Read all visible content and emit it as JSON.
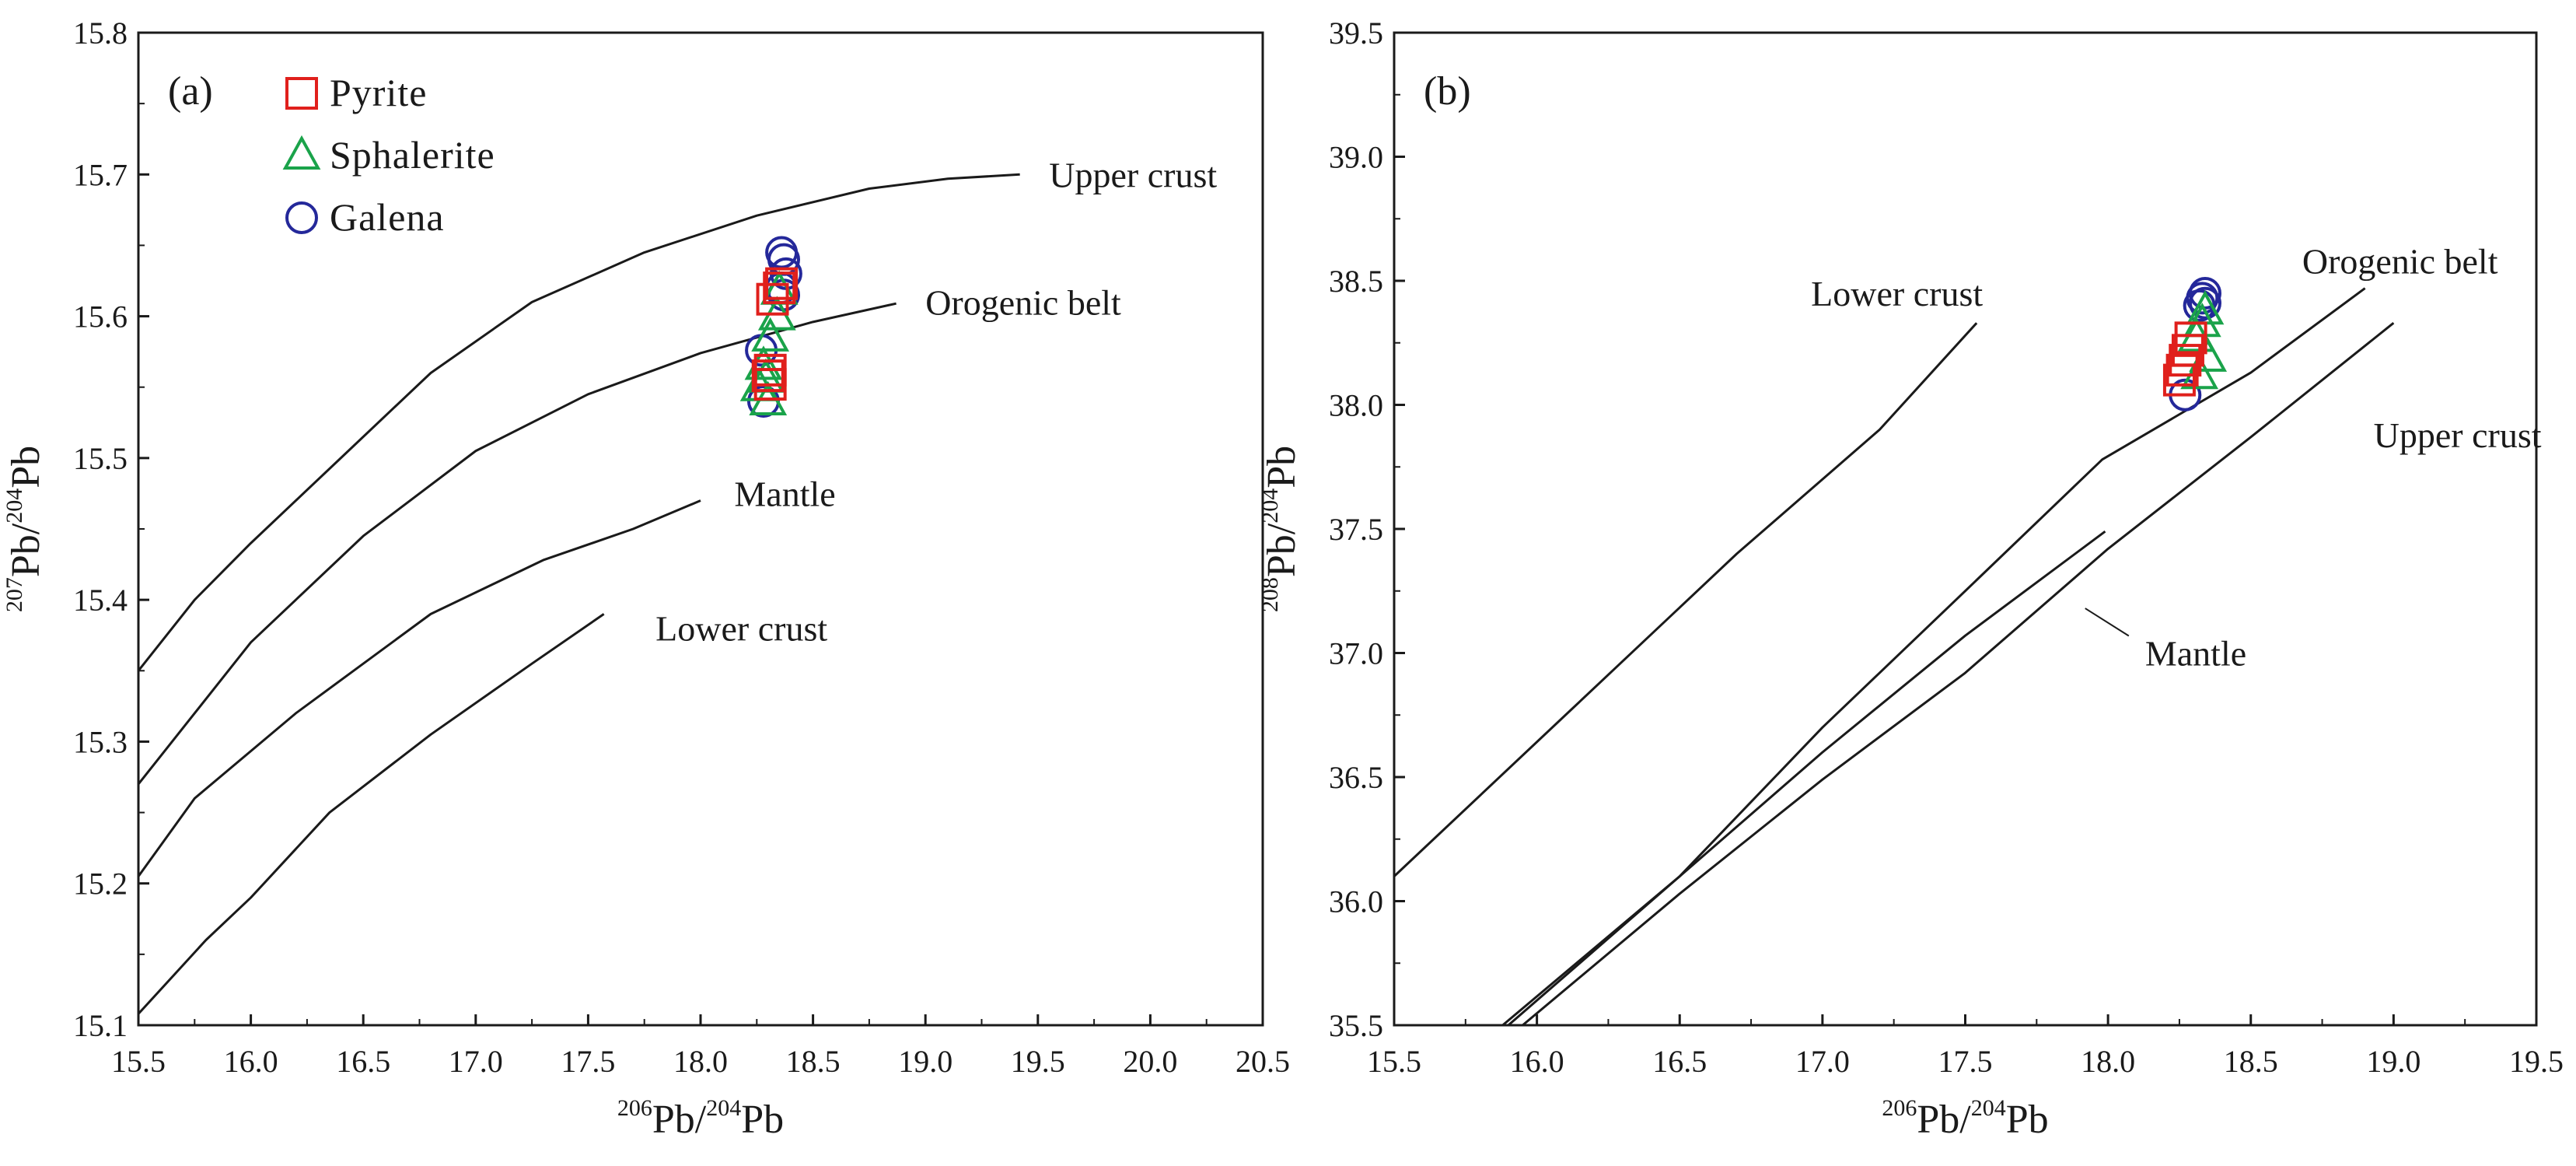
{
  "chart_data": [
    {
      "type": "line",
      "panel_label": "(a)",
      "xlabel": {
        "sup1": "206",
        "base1": "Pb/",
        "sup2": "204",
        "base2": "Pb"
      },
      "ylabel": {
        "sup1": "207",
        "base1": "Pb/",
        "sup2": "204",
        "base2": "Pb"
      },
      "xlim": [
        15.5,
        20.5
      ],
      "ylim": [
        15.1,
        15.8
      ],
      "xticks": [
        "15.5",
        "16.0",
        "16.5",
        "17.0",
        "17.5",
        "18.0",
        "18.5",
        "19.0",
        "19.5",
        "20.0",
        "20.5"
      ],
      "yticks": [
        "15.1",
        "15.2",
        "15.3",
        "15.4",
        "15.5",
        "15.6",
        "15.7",
        "15.8"
      ],
      "legend": [
        {
          "name": "Pyrite",
          "marker": "square",
          "color": "#e0201c"
        },
        {
          "name": "Sphalerite",
          "marker": "triangle",
          "color": "#1aa34a"
        },
        {
          "name": "Galena",
          "marker": "circle",
          "color": "#24289a"
        }
      ],
      "series": [
        {
          "name": "Upper crust",
          "label": "Upper crust",
          "label_at": [
            19.55,
            15.7
          ],
          "x": [
            15.5,
            15.75,
            16.0,
            16.4,
            16.8,
            17.25,
            17.75,
            18.25,
            18.75,
            19.1,
            19.42
          ],
          "y": [
            15.35,
            15.4,
            15.44,
            15.5,
            15.56,
            15.61,
            15.645,
            15.671,
            15.69,
            15.697,
            15.7
          ]
        },
        {
          "name": "Orogenic belt",
          "label": "Orogenic belt",
          "label_at": [
            19.0,
            15.61
          ],
          "x": [
            15.5,
            15.75,
            16.0,
            16.5,
            17.0,
            17.5,
            18.0,
            18.5,
            18.87
          ],
          "y": [
            15.27,
            15.32,
            15.37,
            15.445,
            15.505,
            15.545,
            15.574,
            15.596,
            15.609
          ]
        },
        {
          "name": "Mantle",
          "label": "Mantle",
          "label_at": [
            18.15,
            15.475
          ],
          "x": [
            15.5,
            15.75,
            16.2,
            16.8,
            17.3,
            17.7,
            18.0
          ],
          "y": [
            15.205,
            15.26,
            15.32,
            15.39,
            15.428,
            15.45,
            15.47
          ]
        },
        {
          "name": "Lower crust",
          "label": "Lower crust",
          "label_at": [
            17.8,
            15.38
          ],
          "x": [
            15.5,
            15.8,
            16.0,
            16.35,
            16.8,
            17.25,
            17.57
          ],
          "y": [
            15.108,
            15.16,
            15.19,
            15.25,
            15.305,
            15.355,
            15.39
          ]
        }
      ],
      "points": {
        "Galena": {
          "x": [
            18.36,
            18.37,
            18.38,
            18.36,
            18.37,
            18.27,
            18.28
          ],
          "y": [
            15.645,
            15.64,
            15.63,
            15.62,
            15.615,
            15.576,
            15.54
          ]
        },
        "Sphalerite": {
          "x": [
            18.35,
            18.34,
            18.31,
            18.28,
            18.26,
            18.29,
            18.3
          ],
          "y": [
            15.618,
            15.6,
            15.585,
            15.565,
            15.55,
            15.556,
            15.54
          ]
        },
        "Pyrite": {
          "x": [
            18.36,
            18.35,
            18.32,
            18.31,
            18.3,
            18.31
          ],
          "y": [
            15.623,
            15.62,
            15.612,
            15.562,
            15.558,
            15.552
          ]
        }
      }
    },
    {
      "type": "line",
      "panel_label": "(b)",
      "xlabel": {
        "sup1": "206",
        "base1": "Pb/",
        "sup2": "204",
        "base2": "Pb"
      },
      "ylabel": {
        "sup1": "208",
        "base1": "Pb/",
        "sup2": "204",
        "base2": "Pb"
      },
      "xlim": [
        15.5,
        19.5
      ],
      "ylim": [
        35.5,
        39.5
      ],
      "xticks": [
        "15.5",
        "16.0",
        "16.5",
        "17.0",
        "17.5",
        "18.0",
        "18.5",
        "19.0",
        "19.5"
      ],
      "yticks": [
        "35.5",
        "36.0",
        "36.5",
        "37.0",
        "37.5",
        "38.0",
        "38.5",
        "39.0",
        "39.5"
      ],
      "series": [
        {
          "name": "Lower crust",
          "label": "Lower crust",
          "label_at": [
            16.96,
            38.45
          ],
          "x": [
            15.5,
            16.1,
            16.7,
            17.2,
            17.54
          ],
          "y": [
            36.1,
            36.75,
            37.4,
            37.9,
            38.33
          ]
        },
        {
          "name": "Orogenic belt",
          "label": "Orogenic belt",
          "label_at": [
            18.68,
            38.58
          ],
          "x": [
            15.9,
            16.5,
            17.0,
            17.5,
            17.98,
            18.5,
            18.9
          ],
          "y": [
            35.5,
            36.1,
            36.7,
            37.25,
            37.78,
            38.13,
            38.47
          ]
        },
        {
          "name": "Mantle",
          "label": "Mantle",
          "label_at": [
            18.13,
            37.0
          ],
          "x": [
            15.88,
            16.5,
            17.0,
            17.5,
            17.99
          ],
          "y": [
            35.5,
            36.1,
            36.6,
            37.07,
            37.49
          ]
        },
        {
          "name": "Upper crust",
          "label": "Upper crust",
          "label_at": [
            18.93,
            37.88
          ],
          "x": [
            15.95,
            16.5,
            17.0,
            17.5,
            18.0,
            18.5,
            19.0
          ],
          "y": [
            35.5,
            36.03,
            36.49,
            36.92,
            37.42,
            37.87,
            38.33
          ]
        }
      ],
      "annotation": {
        "text": "Mantle",
        "leader_from": [
          17.92,
          37.18
        ],
        "leader_to": [
          18.1,
          37.0
        ]
      },
      "points": {
        "Galena": {
          "x": [
            18.34,
            18.33,
            18.32,
            18.34,
            18.27
          ],
          "y": [
            38.45,
            38.43,
            38.4,
            38.41,
            38.04
          ]
        },
        "Sphalerite": {
          "x": [
            18.34,
            18.33,
            18.31,
            18.35,
            18.32
          ],
          "y": [
            38.38,
            38.33,
            38.27,
            38.19,
            38.12
          ]
        },
        "Pyrite": {
          "x": [
            18.29,
            18.28,
            18.27,
            18.26,
            18.25
          ],
          "y": [
            38.27,
            38.22,
            38.18,
            38.14,
            38.1
          ]
        }
      }
    }
  ]
}
